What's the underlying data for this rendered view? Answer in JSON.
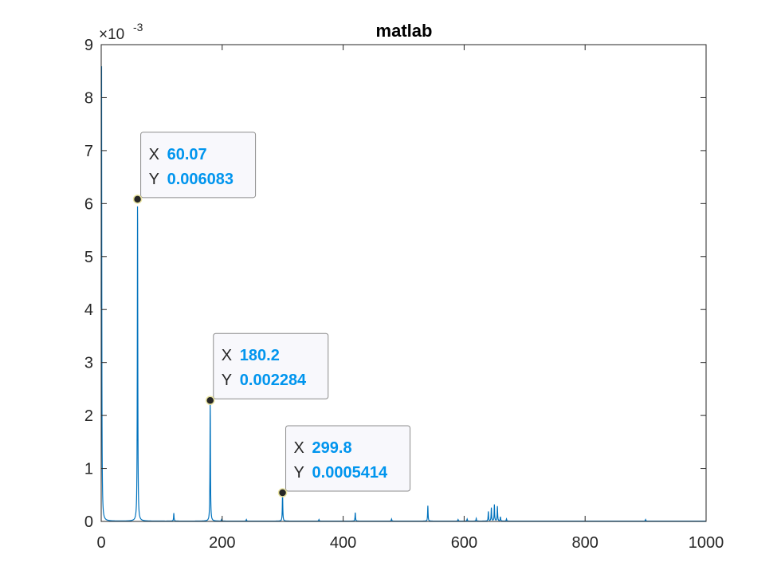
{
  "chart_data": {
    "type": "line",
    "title": "matlab",
    "xlabel": "",
    "ylabel": "",
    "xlim": [
      0,
      1000
    ],
    "ylim": [
      0,
      0.009
    ],
    "y_exponent_label": "×10",
    "y_exponent_power": "-3",
    "x_ticks": [
      {
        "value": 0,
        "label": "0"
      },
      {
        "value": 200,
        "label": "200"
      },
      {
        "value": 400,
        "label": "400"
      },
      {
        "value": 600,
        "label": "600"
      },
      {
        "value": 800,
        "label": "800"
      },
      {
        "value": 1000,
        "label": "1000"
      }
    ],
    "y_ticks": [
      {
        "value": 0,
        "label": "0"
      },
      {
        "value": 0.001,
        "label": "1"
      },
      {
        "value": 0.002,
        "label": "2"
      },
      {
        "value": 0.003,
        "label": "3"
      },
      {
        "value": 0.004,
        "label": "4"
      },
      {
        "value": 0.005,
        "label": "5"
      },
      {
        "value": 0.006,
        "label": "6"
      },
      {
        "value": 0.007,
        "label": "7"
      },
      {
        "value": 0.008,
        "label": "8"
      },
      {
        "value": 0.009,
        "label": "9"
      }
    ],
    "grid": false,
    "line_color": "#0072BD",
    "series": [
      {
        "peaks": [
          {
            "x": 0.5,
            "y": 0.009
          },
          {
            "x": 60.07,
            "y": 0.006083
          },
          {
            "x": 120,
            "y": 0.00015
          },
          {
            "x": 180.2,
            "y": 0.002284
          },
          {
            "x": 199,
            "y": 3e-05
          },
          {
            "x": 240,
            "y": 3e-05
          },
          {
            "x": 299.8,
            "y": 0.0005414
          },
          {
            "x": 360,
            "y": 3e-05
          },
          {
            "x": 420,
            "y": 0.00016
          },
          {
            "x": 480,
            "y": 4e-05
          },
          {
            "x": 540,
            "y": 0.00029
          },
          {
            "x": 590,
            "y": 3e-05
          },
          {
            "x": 605,
            "y": 4e-05
          },
          {
            "x": 620,
            "y": 5e-05
          },
          {
            "x": 640,
            "y": 0.00018
          },
          {
            "x": 645,
            "y": 0.00025
          },
          {
            "x": 650,
            "y": 0.00031
          },
          {
            "x": 655,
            "y": 0.00028
          },
          {
            "x": 660,
            "y": 8e-05
          },
          {
            "x": 670,
            "y": 4e-05
          },
          {
            "x": 900,
            "y": 3e-05
          }
        ]
      }
    ],
    "datatips": [
      {
        "x_label": "X",
        "x_value": "60.07",
        "y_label": "Y",
        "y_value": "0.006083",
        "x": 60.07,
        "y": 0.006083
      },
      {
        "x_label": "X",
        "x_value": "180.2",
        "y_label": "Y",
        "y_value": "0.002284",
        "x": 180.2,
        "y": 0.002284
      },
      {
        "x_label": "X",
        "x_value": "299.8",
        "y_label": "Y",
        "y_value": "0.0005414",
        "x": 299.8,
        "y": 0.0005414
      }
    ],
    "datatip_value_color": "#0095EE"
  }
}
